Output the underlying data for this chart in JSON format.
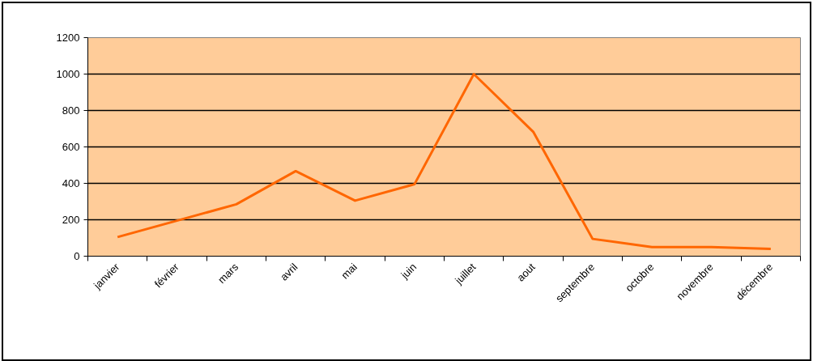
{
  "chart_data": {
    "type": "line",
    "categories": [
      "janvier",
      "février",
      "mars",
      "avril",
      "mai",
      "juin",
      "juillet",
      "aout",
      "septembre",
      "octobre",
      "novembre",
      "décembre"
    ],
    "series": [
      {
        "color": "#ff6600",
        "values": [
          105,
          195,
          285,
          467,
          305,
          395,
          1000,
          683,
          95,
          50,
          50,
          40
        ]
      }
    ],
    "ylim": [
      0,
      1200
    ],
    "yticks": [
      0,
      200,
      400,
      600,
      800,
      1000,
      1200
    ],
    "grid": "y",
    "marker": "none",
    "line_style": "solid"
  }
}
